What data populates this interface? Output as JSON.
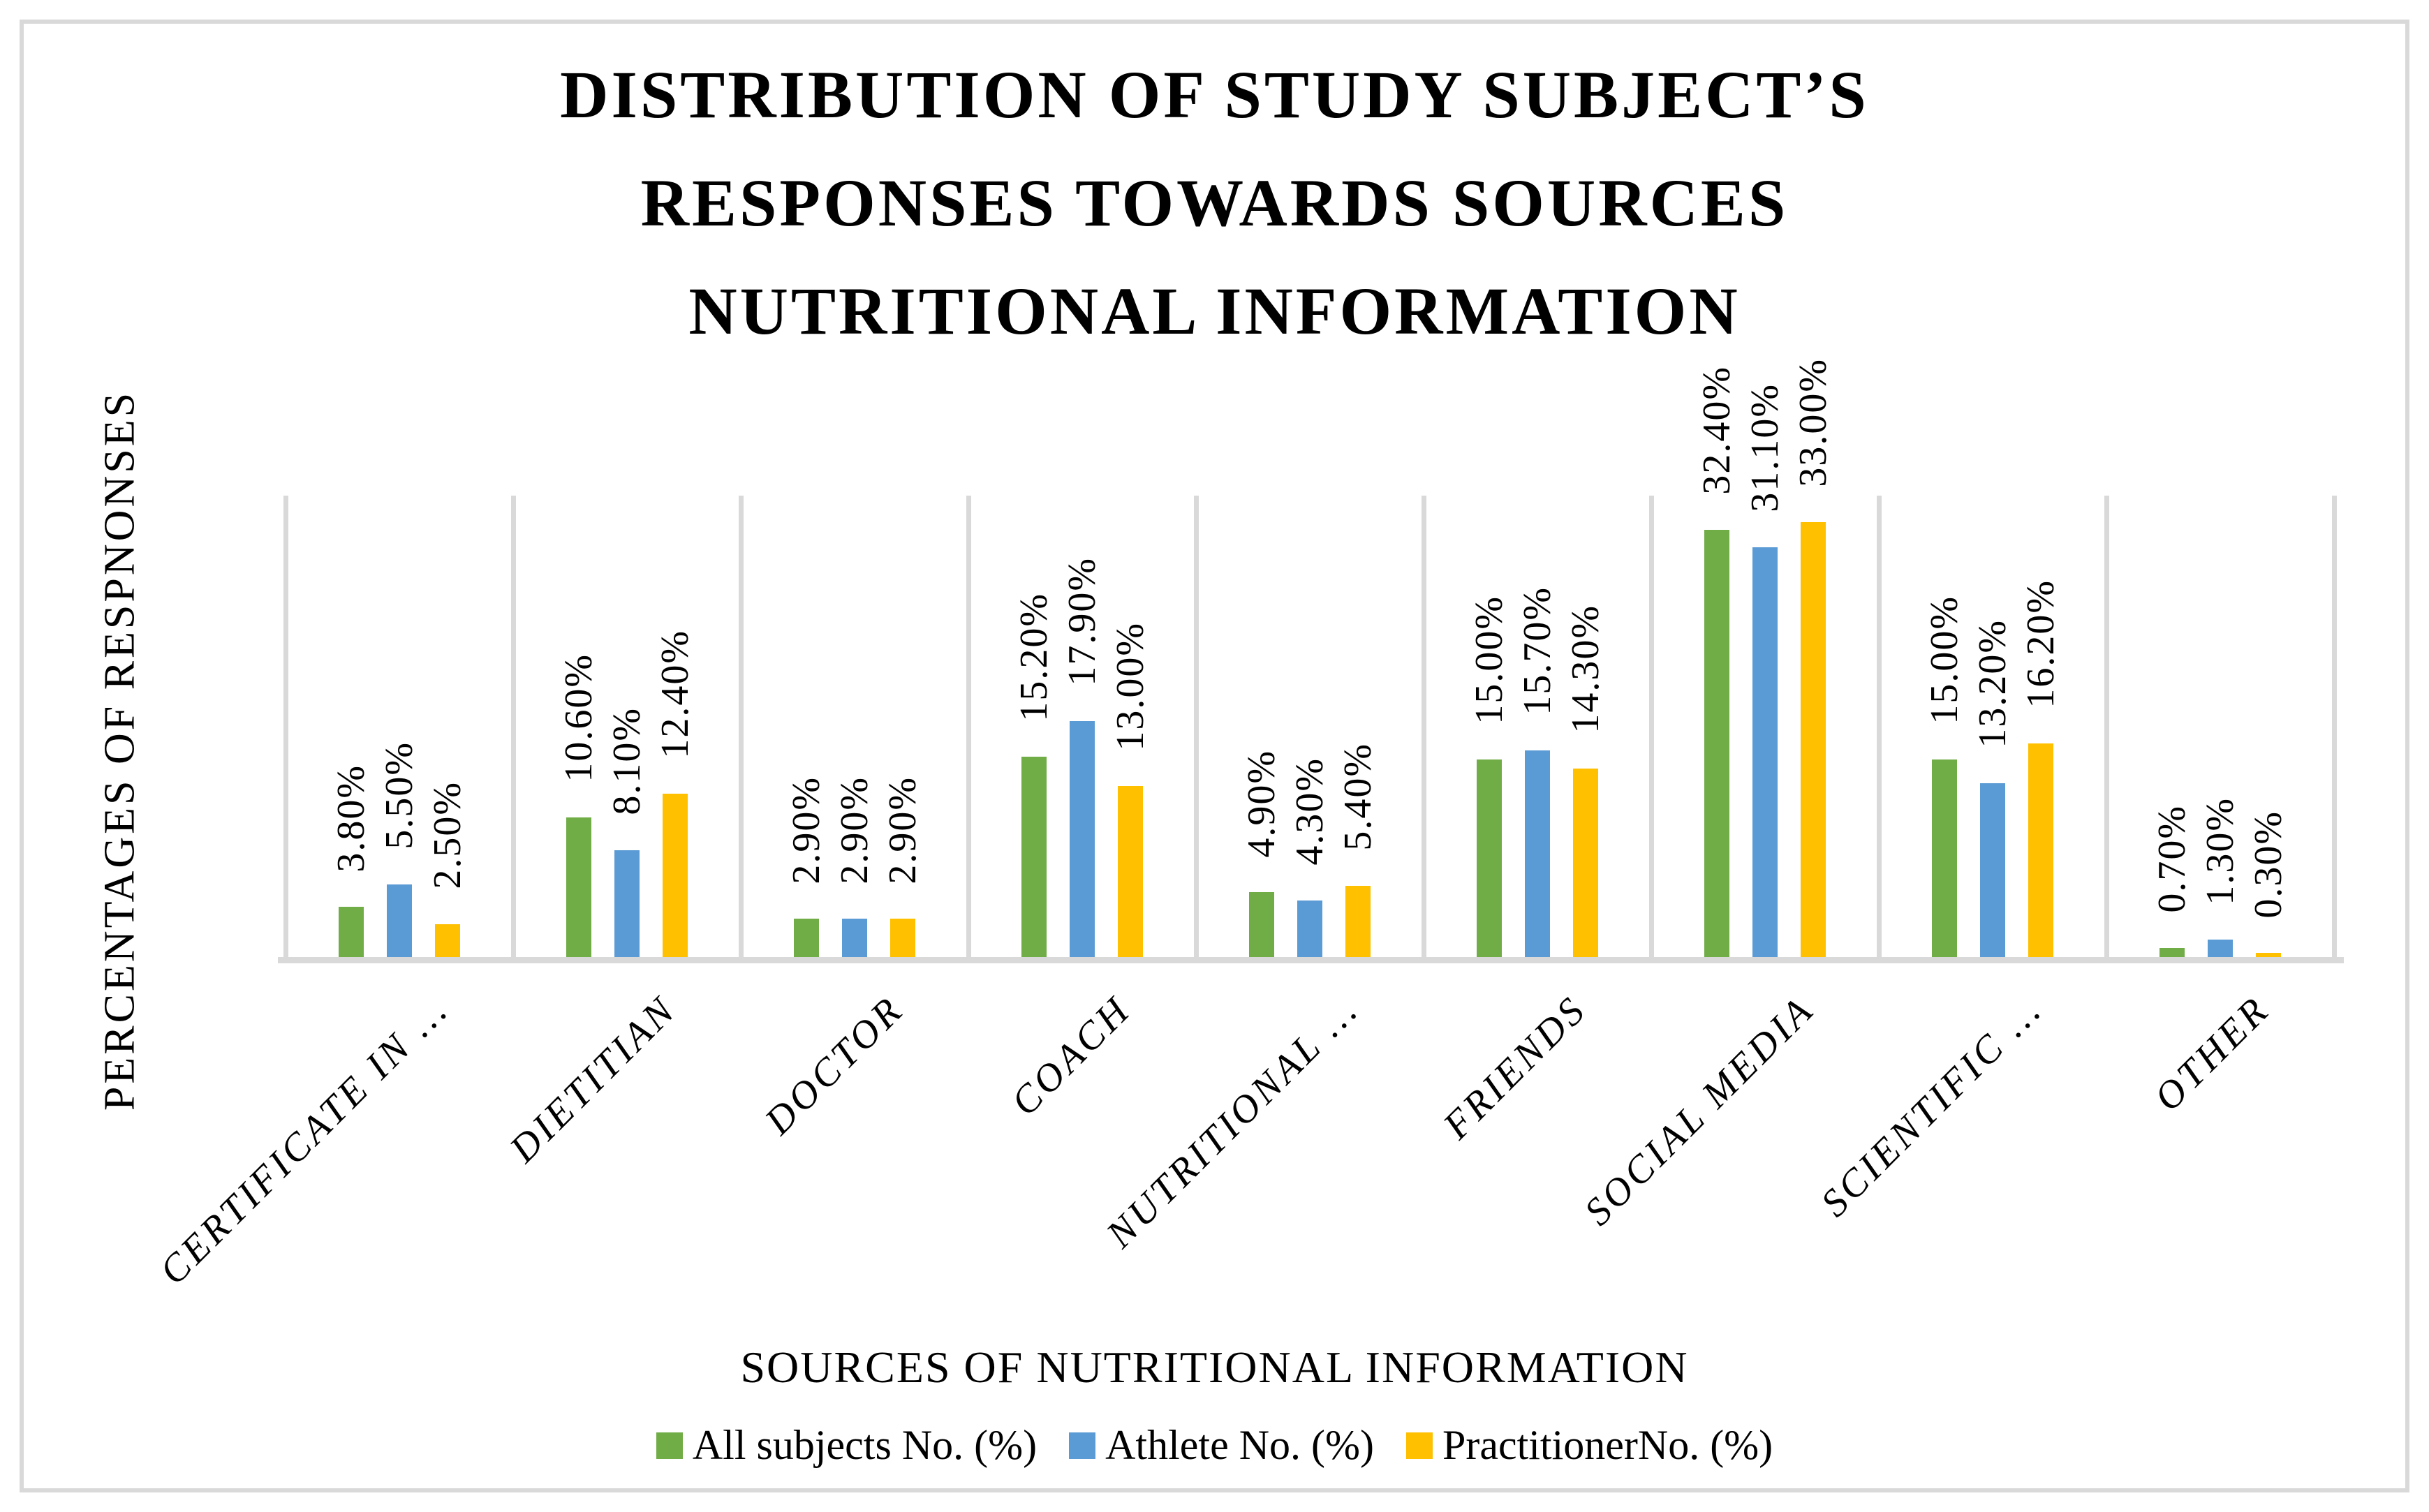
{
  "title": {
    "lines": [
      "DISTRIBUTION OF STUDY SUBJECT’S",
      "RESPONSES TOWARDS SOURCES",
      "NUTRITIONAL INFORMATION"
    ]
  },
  "axes": {
    "y_label": "PERCENTAGES OF RESPNONSES",
    "x_label": "SOURCES OF NUTRITIONAL INFORMATION"
  },
  "legend": {
    "items": [
      {
        "label": "All subjects No. (%)",
        "color": "#70AD47"
      },
      {
        "label": "Athlete No. (%)",
        "color": "#5B9BD5"
      },
      {
        "label": "PractitionerNo. (%)",
        "color": "#FFC000"
      }
    ]
  },
  "colors": {
    "grid": "#D9D9D9",
    "text": "#000000",
    "background": "#FFFFFF"
  },
  "chart_data": {
    "type": "bar",
    "title": "DISTRIBUTION OF STUDY SUBJECT’S RESPONSES TOWARDS SOURCES NUTRITIONAL INFORMATION",
    "xlabel": "SOURCES OF NUTRITIONAL INFORMATION",
    "ylabel": "PERCENTAGES OF RESPNONSES",
    "categories": [
      "CERTIFICATE IN …",
      "DIETITIAN",
      "DOCTOR",
      "COACH",
      "NUTRITIONAL …",
      "FRIENDS",
      "SOCIAL MEDIA",
      "SCIENTIFIC …",
      "OTHER"
    ],
    "series": [
      {
        "name": "All subjects No. (%)",
        "color": "#70AD47",
        "values": [
          3.8,
          10.6,
          2.9,
          15.2,
          4.9,
          15.0,
          32.4,
          15.0,
          0.7
        ],
        "labels": [
          "3.80%",
          "10.60%",
          "2.90%",
          "15.20%",
          "4.90%",
          "15.00%",
          "32.40%",
          "15.00%",
          "0.70%"
        ]
      },
      {
        "name": "Athlete No. (%)",
        "color": "#5B9BD5",
        "values": [
          5.5,
          8.1,
          2.9,
          17.9,
          4.3,
          15.7,
          31.1,
          13.2,
          1.3
        ],
        "labels": [
          "5.50%",
          "8.10%",
          "2.90%",
          "17.90%",
          "4.30%",
          "15.70%",
          "31.10%",
          "13.20%",
          "1.30%"
        ]
      },
      {
        "name": "PractitionerNo. (%)",
        "color": "#FFC000",
        "values": [
          2.5,
          12.4,
          2.9,
          13.0,
          5.4,
          14.3,
          33.0,
          16.2,
          0.3
        ],
        "labels": [
          "2.50%",
          "12.40%",
          "2.90%",
          "13.00%",
          "5.40%",
          "14.30%",
          "33.00%",
          "16.20%",
          "0.30%"
        ]
      }
    ],
    "ylim": [
      0,
      35
    ],
    "grid": "vertical category separators only, no y-axis tick labels",
    "data_labels": "rotated 90° (reading bottom-to-top), above bars",
    "legend_position": "bottom"
  }
}
